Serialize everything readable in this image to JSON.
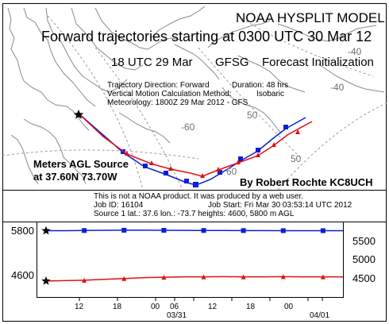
{
  "title": "NOAA HYSPLIT MODEL",
  "subtitle": "Forward trajectories starting at 0300 UTC 30 Mar 12",
  "init_line": {
    "time": "18 UTC 29 Mar",
    "model": "GFSG",
    "label": "Forecast Initialization"
  },
  "info": {
    "direction": "Trajectory Direction: Forward",
    "duration": "Duration: 48 hrs",
    "vertical_method": "Vertical Motion Calculation Method:",
    "vertical_value": "Isobaric",
    "meteorology": "Meteorology: 1800Z 29 Mar 2012 - GFS"
  },
  "overlay": {
    "source_heading": "Meters AGL Source",
    "source_coords": "at  37.60N  73.70W",
    "author": "By Robert Rochte  KC8UCH"
  },
  "footer": {
    "disclaimer": "This is not a NOAA product. It was produced by a web user.",
    "job_id": "Job ID: 16104",
    "job_start": "Job Start: Fri Mar 30 03:53:14 UTC 2012",
    "source_info": "Source 1 lat.: 37.6  lon.: -73.7  heights: 4600, 5800 m AGL"
  },
  "map_labels": {
    "lon_40_a": "-40",
    "lon_40_b": "-40",
    "lon_50": "50",
    "lon_60": "-60",
    "lon_60b": "60",
    "lon_50b": "50"
  },
  "colors": {
    "blue_series": "#0a1fd6",
    "red_series": "#e01010",
    "map_lines": "#8a8a8a",
    "text": "#000000"
  },
  "chart_data": {
    "type": "line",
    "x_tick_labels": [
      "12",
      "18",
      "00",
      "06",
      "12",
      "18",
      "00"
    ],
    "date_labels": [
      "03/31",
      "04/01"
    ],
    "start_heights_m_agl": [
      {
        "label": "5800",
        "series": "blue"
      },
      {
        "label": "4600",
        "series": "red"
      }
    ],
    "pressure_labels": [
      "5500",
      "5000",
      "4500"
    ],
    "series": [
      {
        "color": "blue",
        "values": [
          5800,
          5800,
          5805,
          5810,
          5812,
          5812,
          5810,
          5808,
          5806,
          5805,
          5804,
          5803,
          5802,
          5802,
          5801,
          5800
        ]
      },
      {
        "color": "red",
        "values": [
          4600,
          4610,
          4620,
          4640,
          4660,
          4680,
          4690,
          4700,
          4700,
          4705,
          4700,
          4700,
          4705,
          4700,
          4700,
          4700
        ]
      }
    ]
  }
}
